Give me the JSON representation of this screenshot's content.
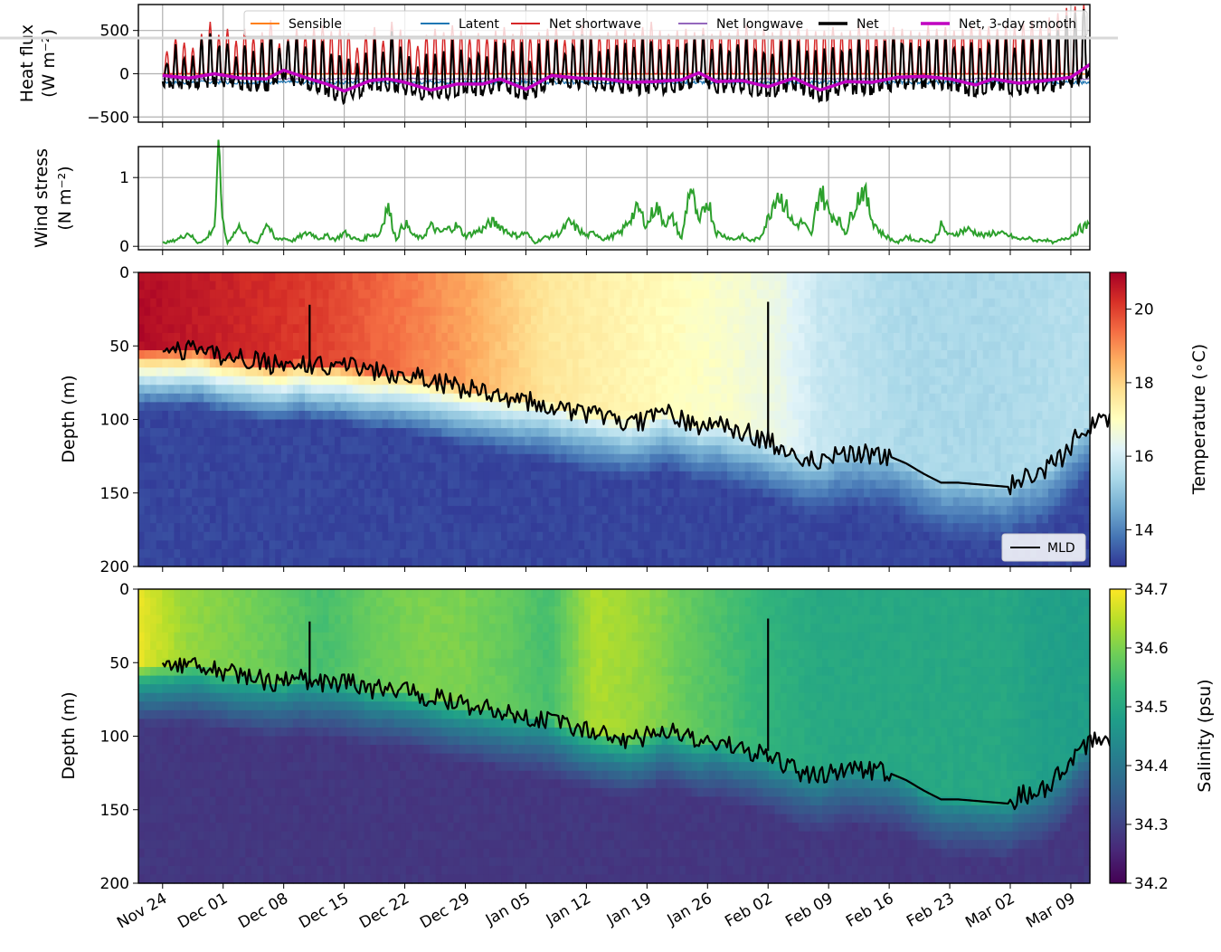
{
  "chart_data": [
    {
      "type": "line",
      "panel": "heat-flux",
      "ylabel": "Heat flux",
      "yunits": "(W m⁻²)",
      "yticks": [
        500,
        0,
        -500
      ],
      "ytick_labels": [
        "500",
        "0",
        "−500"
      ],
      "ylim": [
        -560,
        800
      ],
      "grid": true,
      "legend_position": "top-center",
      "series": [
        {
          "name": "Sensible",
          "color": "#ff7f0e",
          "mean_value": -5
        },
        {
          "name": "Latent",
          "color": "#1f77b4",
          "mean_value": -100
        },
        {
          "name": "Net shortwave",
          "color": "#d62728",
          "night_value": 0,
          "daily_peak_values": [
            260,
            420,
            360,
            300,
            460,
            600,
            450,
            520,
            380,
            520,
            420,
            480,
            620,
            350,
            410,
            520,
            450,
            530,
            560,
            490,
            520,
            470,
            300,
            450,
            540,
            380,
            600,
            510,
            430,
            320,
            450,
            520,
            480,
            560,
            500,
            410,
            470,
            420,
            500,
            540,
            460,
            560,
            430,
            480,
            520,
            540,
            390,
            500,
            560,
            520,
            450,
            480,
            500,
            520,
            470,
            540,
            600,
            500,
            460,
            500,
            520,
            480,
            530,
            460,
            500,
            470,
            520,
            560,
            500,
            520,
            480,
            540,
            500,
            560,
            520,
            490,
            500,
            540,
            480,
            500,
            560,
            520,
            470,
            500,
            540,
            520,
            500,
            480,
            560,
            520,
            540,
            500,
            520,
            560,
            540,
            550,
            520,
            560,
            540,
            580,
            600,
            560,
            650,
            700,
            760,
            780,
            800
          ]
        },
        {
          "name": "Net longwave",
          "color": "#9467bd",
          "mean_value": -60
        },
        {
          "name": "Net",
          "color": "#000000"
        },
        {
          "name": "Net, 3-day smooth",
          "color": "#c000c0",
          "x_day": [
            0,
            3,
            6,
            9,
            12,
            14,
            17,
            19,
            21,
            24,
            26,
            28,
            31,
            34,
            37,
            39,
            42,
            45,
            48,
            51,
            54,
            57,
            60,
            62,
            64,
            67,
            70,
            73,
            76,
            79,
            82,
            85,
            88,
            91,
            94,
            96,
            99,
            102,
            105,
            108,
            110
          ],
          "values": [
            -20,
            -50,
            0,
            -50,
            -60,
            40,
            -60,
            -120,
            -200,
            -80,
            -60,
            -100,
            -190,
            -120,
            -120,
            -60,
            -180,
            -20,
            -50,
            -60,
            -100,
            -90,
            -70,
            10,
            -90,
            -80,
            -150,
            -50,
            -190,
            -90,
            -100,
            -40,
            -30,
            -60,
            -130,
            -60,
            -110,
            -80,
            -40,
            160,
            -30
          ]
        }
      ]
    },
    {
      "type": "line",
      "panel": "wind-stress",
      "ylabel": "Wind stress",
      "yunits": "(N m⁻²)",
      "yticks": [
        1,
        0
      ],
      "ytick_labels": [
        "1",
        "0"
      ],
      "ylim": [
        -0.05,
        1.45
      ],
      "grid": true,
      "series": [
        {
          "name": "",
          "color": "#2ca02c",
          "x_day": [
            0,
            1,
            2,
            3,
            4,
            5,
            6,
            6.5,
            7,
            7.5,
            8,
            9,
            10,
            11,
            12,
            13,
            14,
            15,
            16,
            17,
            18,
            19,
            20,
            21,
            22,
            23,
            24,
            25,
            26,
            27,
            28,
            29,
            30,
            31,
            32,
            33,
            34,
            35,
            36,
            37,
            38,
            39,
            40,
            41,
            42,
            43,
            44,
            45,
            46,
            47,
            48,
            49,
            50,
            51,
            52,
            53,
            54,
            55,
            56,
            57,
            58,
            59,
            60,
            61,
            62,
            63,
            64,
            65,
            66,
            67,
            68,
            69,
            70,
            71,
            72,
            73,
            74,
            75,
            76,
            77,
            78,
            79,
            80,
            81,
            82,
            83,
            84,
            85,
            86,
            87,
            88,
            89,
            90,
            91,
            92,
            93,
            94,
            95,
            96,
            97,
            98,
            99,
            100,
            101,
            102,
            103,
            104,
            105,
            106,
            107,
            108,
            109,
            110
          ],
          "values": [
            0.05,
            0.07,
            0.12,
            0.2,
            0.05,
            0.1,
            0.3,
            1.35,
            0.3,
            0.05,
            0.15,
            0.3,
            0.08,
            0.05,
            0.35,
            0.1,
            0.12,
            0.08,
            0.15,
            0.2,
            0.12,
            0.15,
            0.1,
            0.2,
            0.12,
            0.08,
            0.18,
            0.15,
            0.6,
            0.1,
            0.35,
            0.15,
            0.12,
            0.3,
            0.2,
            0.25,
            0.3,
            0.15,
            0.2,
            0.25,
            0.35,
            0.3,
            0.2,
            0.15,
            0.2,
            0.05,
            0.12,
            0.15,
            0.2,
            0.35,
            0.25,
            0.15,
            0.2,
            0.1,
            0.15,
            0.2,
            0.4,
            0.55,
            0.3,
            0.6,
            0.35,
            0.4,
            0.1,
            0.9,
            0.3,
            0.7,
            0.2,
            0.15,
            0.1,
            0.15,
            0.08,
            0.12,
            0.4,
            0.8,
            0.6,
            0.3,
            0.35,
            0.15,
            0.85,
            0.5,
            0.4,
            0.2,
            0.6,
            0.85,
            0.4,
            0.2,
            0.12,
            0.05,
            0.15,
            0.08,
            0.1,
            0.05,
            0.3,
            0.15,
            0.2,
            0.25,
            0.2,
            0.15,
            0.2,
            0.18,
            0.15,
            0.1,
            0.12,
            0.08,
            0.1,
            0.05,
            0.1,
            0.15,
            0.25,
            0.3,
            0.1,
            0.05,
            0.2
          ]
        }
      ]
    },
    {
      "type": "heatmap",
      "panel": "temperature",
      "ylabel": "Depth (m)",
      "yticks": [
        0,
        50,
        100,
        150,
        200
      ],
      "ylim": [
        200,
        0
      ],
      "colorbar_label": "Temperature (∘C)",
      "colorbar_ticks": [
        20,
        18,
        16,
        14
      ],
      "colorbar_range": [
        13,
        21
      ],
      "colormap": [
        "#313695",
        "#4575b4",
        "#74add1",
        "#abd9e9",
        "#e0f3f8",
        "#ffffbf",
        "#fee090",
        "#fdae61",
        "#f46d43",
        "#d73027",
        "#a50026"
      ],
      "surface_temperature": [
        20.8,
        20.6,
        20.4,
        20.2,
        20.0,
        19.6,
        19.2,
        18.8,
        18.2,
        17.6,
        17.4,
        17.2,
        17.0,
        16.8,
        16.5,
        15.8,
        15.6,
        15.4,
        15.4,
        15.4,
        15.5,
        15.6
      ],
      "deep_temperature": 13.2,
      "legend": {
        "label": "MLD",
        "position": "lower-right"
      }
    },
    {
      "type": "heatmap",
      "panel": "salinity",
      "ylabel": "Depth (m)",
      "yticks": [
        0,
        50,
        100,
        150,
        200
      ],
      "ylim": [
        200,
        0
      ],
      "colorbar_label": "Salinity (psu)",
      "colorbar_ticks": [
        "34.7",
        "34.6",
        "34.5",
        "34.4",
        "34.3",
        "34.2"
      ],
      "colorbar_range": [
        34.2,
        34.7
      ],
      "colormap": [
        "#440154",
        "#482878",
        "#3e4a89",
        "#31688e",
        "#26828e",
        "#1f9e89",
        "#35b779",
        "#6ece58",
        "#b5de2b",
        "#fde725"
      ],
      "surface_salinity": [
        34.68,
        34.62,
        34.6,
        34.58,
        34.55,
        34.58,
        34.6,
        34.6,
        34.58,
        34.55,
        34.64,
        34.62,
        34.58,
        34.55,
        34.52,
        34.5,
        34.5,
        34.5,
        34.5,
        34.5,
        34.48,
        34.48
      ],
      "deep_salinity": 34.28
    }
  ],
  "mld": {
    "name": "MLD",
    "color": "#000000",
    "x_day": [
      0,
      2,
      4,
      6,
      8,
      10,
      12,
      14,
      16,
      18,
      20,
      22,
      24,
      26,
      28,
      30,
      32,
      34,
      36,
      38,
      40,
      42,
      44,
      46,
      48,
      50,
      52,
      54,
      56,
      58,
      60,
      62,
      64,
      66,
      68,
      70,
      72,
      74,
      76,
      78,
      80,
      82,
      84,
      86,
      88,
      89,
      90,
      92,
      94,
      96,
      98,
      99,
      100,
      102,
      104,
      106,
      108,
      110
    ],
    "depth": [
      53,
      53,
      52,
      56,
      58,
      60,
      62,
      63,
      60,
      63,
      63,
      65,
      68,
      68,
      70,
      72,
      75,
      78,
      80,
      82,
      85,
      87,
      88,
      92,
      95,
      97,
      100,
      102,
      100,
      95,
      100,
      105,
      103,
      108,
      110,
      115,
      120,
      125,
      128,
      123,
      122,
      124,
      125,
      130,
      137,
      140,
      143,
      143,
      144,
      145,
      146,
      140,
      140,
      135,
      125,
      110,
      100,
      103
    ]
  },
  "x_axis": {
    "start_day_label": "Nov 24",
    "tick_labels": [
      "Nov 24",
      "Dec 01",
      "Dec 08",
      "Dec 15",
      "Dec 22",
      "Dec 29",
      "Jan 05",
      "Jan 12",
      "Jan 19",
      "Jan 26",
      "Feb 02",
      "Feb 09",
      "Feb 16",
      "Feb 23",
      "Mar 02",
      "Mar 09"
    ],
    "tick_days": [
      0,
      7,
      14,
      21,
      28,
      35,
      42,
      49,
      56,
      63,
      70,
      77,
      84,
      91,
      98,
      105
    ],
    "xlim_days": [
      -2.8,
      107.2
    ]
  }
}
